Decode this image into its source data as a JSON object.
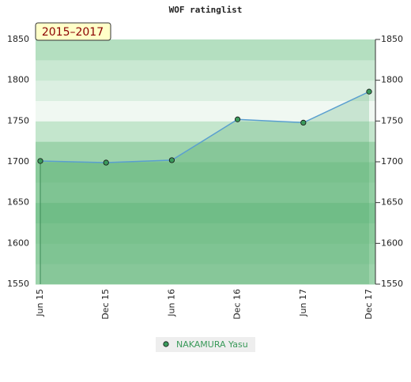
{
  "chart_data": {
    "type": "line",
    "title": "WOF ratinglist",
    "badge": "2015–2017",
    "categories": [
      "Jun 15",
      "Dec 15",
      "Jun 16",
      "Dec 16",
      "Jun 17",
      "Dec 17"
    ],
    "series": [
      {
        "name": "NAKAMURA Yasu",
        "color": "#5a9fd0",
        "values": [
          1701,
          1699,
          1702,
          1752,
          1748,
          1786
        ]
      }
    ],
    "ylim": [
      1550,
      1850
    ],
    "yticks": [
      1550,
      1600,
      1650,
      1700,
      1750,
      1800,
      1850
    ],
    "y2lim": [
      1550,
      1850
    ],
    "y2ticks": [
      1550,
      1600,
      1650,
      1700,
      1750,
      1800,
      1850
    ]
  }
}
